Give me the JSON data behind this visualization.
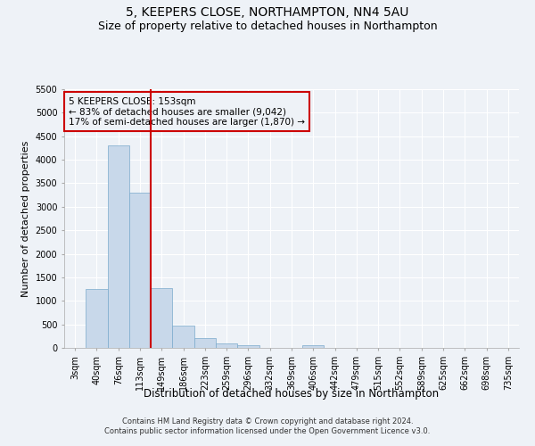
{
  "title": "5, KEEPERS CLOSE, NORTHAMPTON, NN4 5AU",
  "subtitle": "Size of property relative to detached houses in Northampton",
  "xlabel": "Distribution of detached houses by size in Northampton",
  "ylabel": "Number of detached properties",
  "bar_color": "#c8d8ea",
  "bar_edge_color": "#7aaacc",
  "bar_width": 1.0,
  "categories": [
    "3sqm",
    "40sqm",
    "76sqm",
    "113sqm",
    "149sqm",
    "186sqm",
    "223sqm",
    "259sqm",
    "296sqm",
    "332sqm",
    "369sqm",
    "406sqm",
    "442sqm",
    "479sqm",
    "515sqm",
    "552sqm",
    "589sqm",
    "625sqm",
    "662sqm",
    "698sqm",
    "735sqm"
  ],
  "values": [
    0,
    1255,
    4300,
    3300,
    1270,
    480,
    210,
    90,
    50,
    0,
    0,
    60,
    0,
    0,
    0,
    0,
    0,
    0,
    0,
    0,
    0
  ],
  "ylim": [
    0,
    5500
  ],
  "yticks": [
    0,
    500,
    1000,
    1500,
    2000,
    2500,
    3000,
    3500,
    4000,
    4500,
    5000,
    5500
  ],
  "vline_index": 3.5,
  "vline_color": "#cc0000",
  "annotation_line1": "5 KEEPERS CLOSE: 153sqm",
  "annotation_line2": "← 83% of detached houses are smaller (9,042)",
  "annotation_line3": "17% of semi-detached houses are larger (1,870) →",
  "annotation_box_color": "#cc0000",
  "annotation_fontsize": 7.5,
  "background_color": "#eef2f7",
  "grid_color": "#ffffff",
  "footer_line1": "Contains HM Land Registry data © Crown copyright and database right 2024.",
  "footer_line2": "Contains public sector information licensed under the Open Government Licence v3.0.",
  "title_fontsize": 10,
  "subtitle_fontsize": 9,
  "xlabel_fontsize": 8.5,
  "ylabel_fontsize": 8,
  "tick_fontsize": 7
}
